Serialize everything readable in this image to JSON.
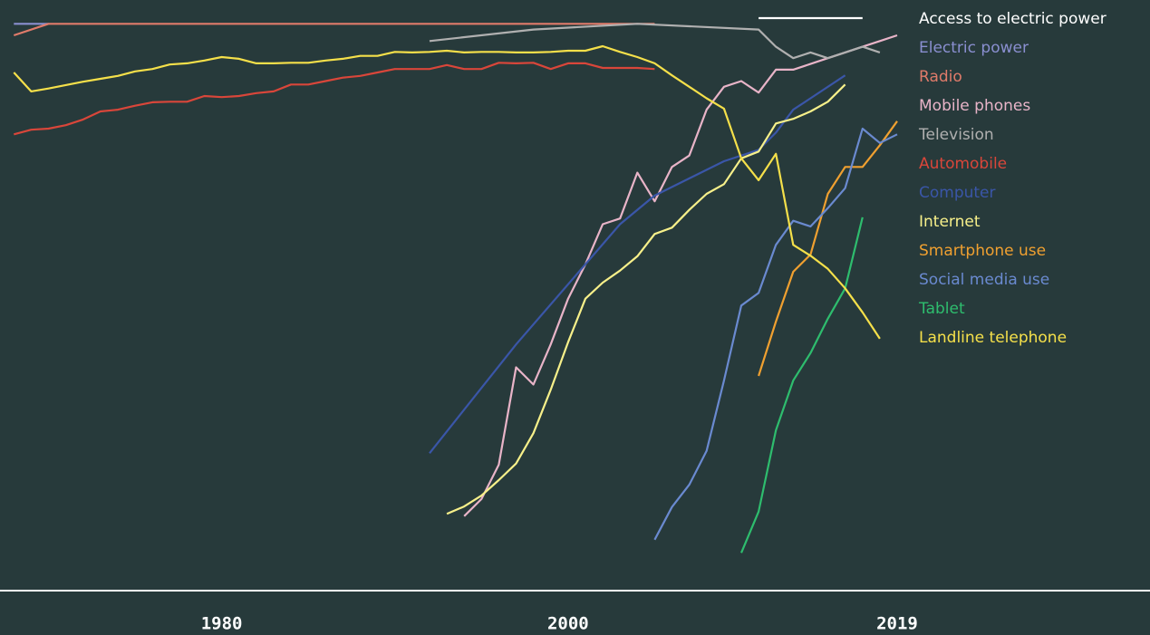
{
  "chart_data": {
    "type": "line",
    "xlim": [
      1967.2,
      2033.6
    ],
    "ylim": [
      0,
      100
    ],
    "xticks": [
      1980,
      2000,
      2019
    ],
    "legend": "top-right",
    "series": [
      {
        "name": "Access to electric power",
        "color": "#ffffff",
        "x": [
          2011,
          2017
        ],
        "values": [
          100,
          100
        ]
      },
      {
        "name": "Electric power",
        "color": "#8a8fd0",
        "x": [
          1968,
          1970
        ],
        "values": [
          99,
          99
        ]
      },
      {
        "name": "Radio",
        "color": "#e07b6a",
        "x": [
          1968,
          1970,
          2005
        ],
        "values": [
          97,
          99,
          99
        ]
      },
      {
        "name": "Mobile phones",
        "color": "#e8b4c8",
        "x": [
          1994,
          1995,
          1996,
          1997,
          1998,
          1999,
          2000,
          2001,
          2002,
          2003,
          2004,
          2005,
          2006,
          2007,
          2008,
          2009,
          2010,
          2011,
          2012,
          2013,
          2014,
          2015,
          2016,
          2017,
          2018,
          2019
        ],
        "values": [
          13,
          16,
          22,
          39,
          36,
          43,
          51,
          57,
          64,
          65,
          73,
          68,
          74,
          76,
          84,
          88,
          89,
          87,
          91,
          91,
          92,
          93,
          94,
          95,
          96,
          97
        ]
      },
      {
        "name": "Television",
        "color": "#b0b0b0",
        "x": [
          1992,
          1998,
          2004,
          2011,
          2012,
          2013,
          2014,
          2015,
          2017,
          2018
        ],
        "values": [
          96,
          98,
          99,
          98,
          95,
          93,
          94,
          93,
          95,
          94
        ]
      },
      {
        "name": "Automobile",
        "color": "#d9463a",
        "x": [
          1968,
          1969,
          1970,
          1971,
          1972,
          1973,
          1974,
          1975,
          1976,
          1977,
          1978,
          1979,
          1980,
          1981,
          1982,
          1983,
          1984,
          1985,
          1986,
          1987,
          1988,
          1989,
          1990,
          1991,
          1992,
          1993,
          1994,
          1995,
          1996,
          1997,
          1998,
          1999,
          2000,
          2001,
          2002,
          2003,
          2004,
          2005
        ],
        "values": [
          79.7,
          80.5,
          80.7,
          81.3,
          82.3,
          83.7,
          84,
          84.7,
          85.3,
          85.4,
          85.4,
          86.4,
          86.2,
          86.4,
          86.9,
          87.2,
          88.4,
          88.4,
          89,
          89.6,
          89.9,
          90.5,
          91.1,
          91.1,
          91.1,
          91.8,
          91.1,
          91.1,
          92.2,
          92.1,
          92.2,
          91.1,
          92.1,
          92.1,
          91.3,
          91.3,
          91.3,
          91.1
        ]
      },
      {
        "name": "Computer",
        "color": "#3a56a8",
        "x": [
          1992,
          1997,
          2003,
          2005,
          2009,
          2011,
          2012,
          2013,
          2014,
          2016
        ],
        "values": [
          24,
          43,
          64,
          69,
          75,
          77,
          80,
          84,
          86,
          90
        ]
      },
      {
        "name": "Internet",
        "color": "#f7f08a",
        "x": [
          1993,
          1994,
          1995,
          1996,
          1997,
          1998,
          1999,
          2000,
          2001,
          2002,
          2003,
          2004,
          2005,
          2006,
          2007,
          2008,
          2009,
          2010,
          2011,
          2012,
          2013,
          2014,
          2015,
          2016
        ],
        "values": [
          13.4,
          14.7,
          16.6,
          19.3,
          22.2,
          27.5,
          35.1,
          43.4,
          51,
          53.8,
          55.9,
          58.4,
          62.3,
          63.4,
          66.5,
          69.3,
          71,
          75.5,
          76.7,
          81.6,
          82.4,
          83.7,
          85.4,
          88.4
        ]
      },
      {
        "name": "Smartphone use",
        "color": "#f0a030",
        "x": [
          2011,
          2012,
          2013,
          2014,
          2015,
          2016,
          2017,
          2018,
          2019
        ],
        "values": [
          37.5,
          47,
          55.7,
          58.7,
          69.3,
          74,
          74,
          77.8,
          82
        ]
      },
      {
        "name": "Social media use",
        "color": "#6a8ad0",
        "x": [
          2005,
          2006,
          2007,
          2008,
          2009,
          2010,
          2011,
          2012,
          2013,
          2014,
          2015,
          2016,
          2017,
          2018,
          2019
        ],
        "values": [
          8.9,
          14.6,
          18.5,
          24.4,
          36.7,
          49.8,
          52,
          60.4,
          64.6,
          63.6,
          66.8,
          70.3,
          80.7,
          78.2,
          79.7
        ]
      },
      {
        "name": "Tablet",
        "color": "#2ebd6e",
        "x": [
          2010,
          2011,
          2012,
          2013,
          2014,
          2015,
          2016,
          2017
        ],
        "values": [
          6.6,
          13.8,
          28,
          36.7,
          41.5,
          47.5,
          52.8,
          65.2
        ]
      },
      {
        "name": "Landline telephone",
        "color": "#f5e04a",
        "x": [
          1968,
          1969,
          1970,
          1971,
          1972,
          1973,
          1974,
          1975,
          1976,
          1977,
          1978,
          1979,
          1980,
          1981,
          1982,
          1983,
          1984,
          1985,
          1986,
          1987,
          1988,
          1989,
          1990,
          1991,
          1992,
          1993,
          1994,
          1995,
          1996,
          1997,
          1998,
          1999,
          2000,
          2001,
          2002,
          2003,
          2004,
          2005,
          2006,
          2007,
          2008,
          2009,
          2010,
          2011,
          2012,
          2013,
          2014,
          2015,
          2016,
          2017,
          2018
        ],
        "values": [
          90.5,
          87.2,
          87.7,
          88.3,
          88.9,
          89.4,
          89.9,
          90.7,
          91.1,
          91.9,
          92.1,
          92.6,
          93.2,
          92.9,
          92.1,
          92.1,
          92.2,
          92.2,
          92.6,
          92.9,
          93.4,
          93.4,
          94.1,
          94,
          94.1,
          94.3,
          94,
          94.1,
          94.1,
          94,
          94,
          94.1,
          94.3,
          94.3,
          95.1,
          94.1,
          93.2,
          92.1,
          90,
          88,
          86,
          84.2,
          75.5,
          71.7,
          76.3,
          60.4,
          58.5,
          56.2,
          52.8,
          48.6,
          44
        ]
      }
    ]
  }
}
